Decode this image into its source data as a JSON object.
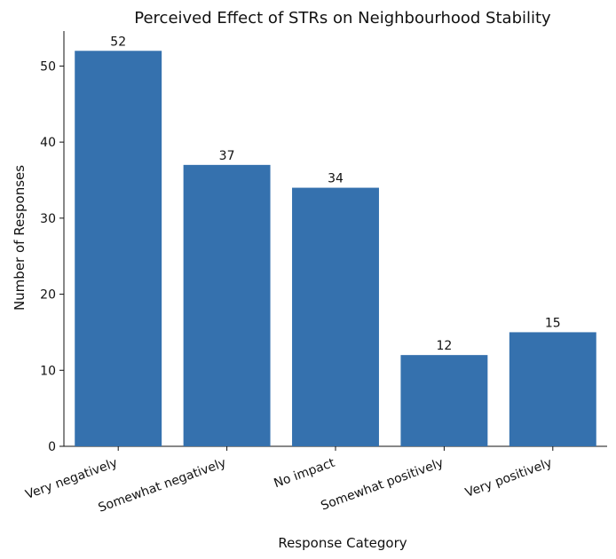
{
  "chart_data": {
    "type": "bar",
    "title": "Perceived Effect of STRs on Neighbourhood Stability",
    "xlabel": "Response Category",
    "ylabel": "Number of Responses",
    "categories": [
      "Very negatively",
      "Somewhat negatively",
      "No impact",
      "Somewhat positively",
      "Very positively"
    ],
    "values": [
      52,
      37,
      34,
      12,
      15
    ],
    "data_labels": [
      "52",
      "37",
      "34",
      "12",
      "15"
    ],
    "ylim": [
      0,
      54.6
    ],
    "yticks": [
      0,
      10,
      20,
      30,
      40,
      50
    ],
    "bar_color": "#3571ae",
    "grid": false,
    "legend": "none"
  }
}
